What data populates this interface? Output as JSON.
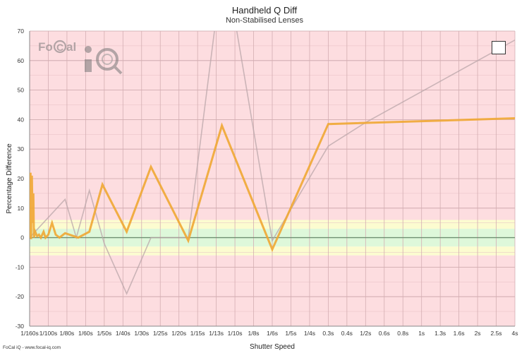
{
  "chart_data": {
    "type": "line",
    "title": "Handheld Q Diff",
    "subtitle": "Non-Stabilised Lenses",
    "xlabel": "Shutter Speed",
    "ylabel": "Percentage Difference",
    "ylim": [
      -30,
      70
    ],
    "yticks": [
      -30,
      -20,
      -10,
      0,
      10,
      20,
      30,
      40,
      50,
      60,
      70
    ],
    "categories": [
      "1/160s",
      "1/100s",
      "1/80s",
      "1/60s",
      "1/50s",
      "1/40s",
      "1/30s",
      "1/25s",
      "1/20s",
      "1/15s",
      "1/13s",
      "1/10s",
      "1/8s",
      "1/6s",
      "1/5s",
      "1/4s",
      "0.3s",
      "0.4s",
      "1/2s",
      "0.6s",
      "0.8s",
      "1s",
      "1.3s",
      "1.6s",
      "2s",
      "2.5s",
      "4s"
    ],
    "bands": [
      {
        "from": -30,
        "to": -6,
        "color": "#fddde0"
      },
      {
        "from": -6,
        "to": -3,
        "color": "#fcfcd0"
      },
      {
        "from": -3,
        "to": 3,
        "color": "#def8da"
      },
      {
        "from": 3,
        "to": 6,
        "color": "#fcfcd0"
      },
      {
        "from": 6,
        "to": 70,
        "color": "#fddde0"
      }
    ],
    "grid": true,
    "series": [
      {
        "color": "#b9a6aa",
        "points": [
          [
            0,
            0
          ],
          [
            1.9,
            13
          ],
          [
            2.5,
            0
          ],
          [
            3.2,
            16
          ],
          [
            4.0,
            -2
          ],
          [
            5.2,
            -19
          ],
          [
            6.5,
            0
          ],
          [
            8.5,
            0
          ],
          [
            9.9,
            70
          ],
          [
            10.6,
            108
          ],
          [
            11.1,
            70
          ],
          [
            13.0,
            -1
          ],
          [
            16.0,
            31
          ],
          [
            18.0,
            39
          ],
          [
            26.3,
            68
          ]
        ]
      },
      {
        "color": "#f0a733",
        "points": [
          [
            0,
            0
          ],
          [
            0.05,
            22
          ],
          [
            0.08,
            -0.5
          ],
          [
            0.12,
            21
          ],
          [
            0.16,
            5
          ],
          [
            0.2,
            15
          ],
          [
            0.23,
            0
          ],
          [
            0.3,
            2
          ],
          [
            0.4,
            0.5
          ],
          [
            0.5,
            1
          ],
          [
            0.6,
            0
          ],
          [
            0.75,
            2
          ],
          [
            0.85,
            0
          ],
          [
            1.0,
            1
          ],
          [
            1.2,
            5
          ],
          [
            1.4,
            1
          ],
          [
            1.6,
            0
          ],
          [
            1.9,
            1.5
          ],
          [
            2.6,
            0
          ],
          [
            3.2,
            2
          ],
          [
            3.9,
            18
          ],
          [
            5.2,
            2
          ],
          [
            6.5,
            24
          ],
          [
            8.5,
            -1
          ],
          [
            10.3,
            38
          ],
          [
            13.0,
            -4
          ],
          [
            16.0,
            38.5
          ],
          [
            26.3,
            40.5
          ]
        ]
      }
    ],
    "logo_text": "FoCal iQ",
    "footer": "FoCal iQ - www.focal-iq.com"
  }
}
